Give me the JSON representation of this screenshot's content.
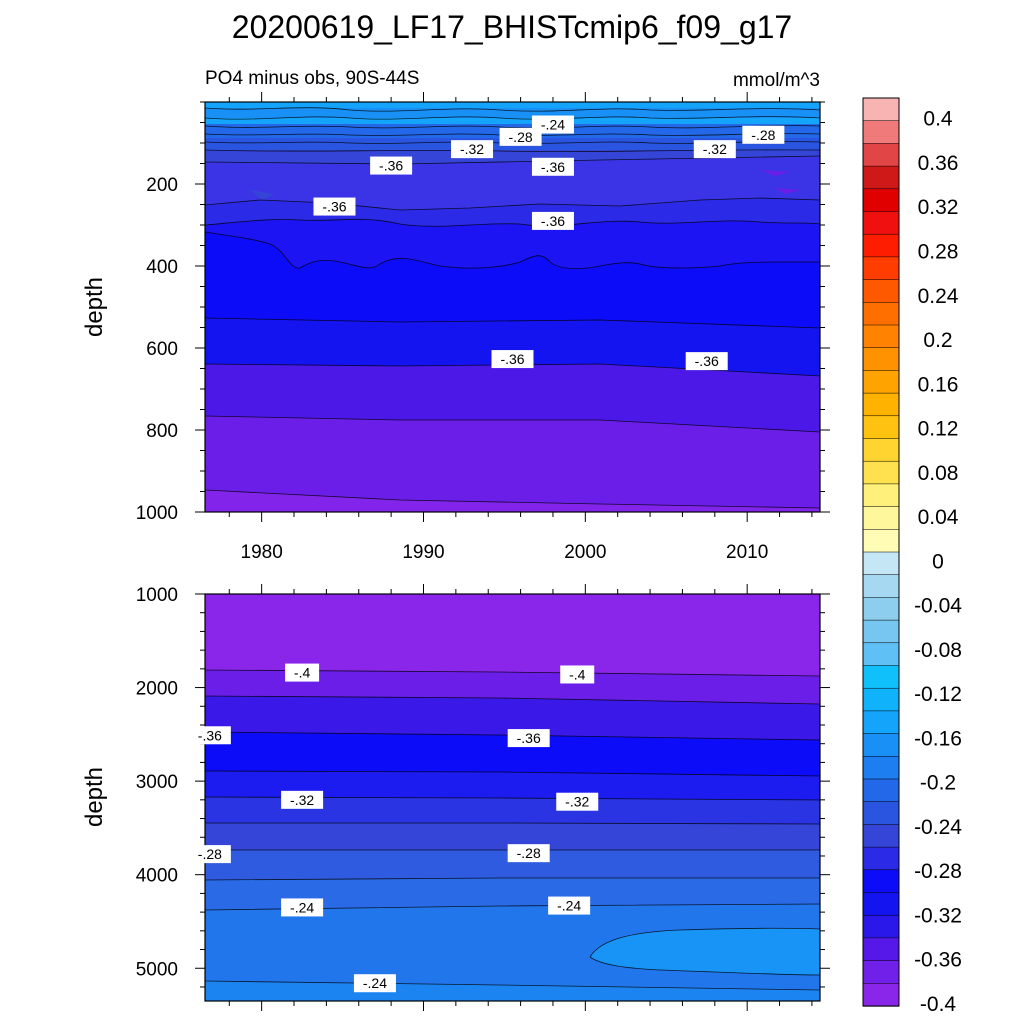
{
  "title": "20200619_LF17_BHISTcmip6_f09_g17",
  "subtitle_left": "PO4 minus obs, 90S-44S",
  "subtitle_right": "mmol/m^3",
  "chart_data": [
    {
      "type": "contour",
      "panel": "upper",
      "ylabel": "depth",
      "xlabel": "",
      "xlim": [
        1976.5,
        2014.5
      ],
      "ylim": [
        1000,
        0
      ],
      "xticks": [
        "1980",
        "1990",
        "2000",
        "2010"
      ],
      "yticks": [
        "200",
        "400",
        "600",
        "800",
        "1000"
      ],
      "contour_labels": [
        {
          "text": "-.24",
          "x": 1998,
          "y": 55
        },
        {
          "text": "-.28",
          "x": 1996,
          "y": 85
        },
        {
          "text": "-.28",
          "x": 2011,
          "y": 80
        },
        {
          "text": "-.32",
          "x": 1993,
          "y": 115
        },
        {
          "text": "-.32",
          "x": 2008,
          "y": 115
        },
        {
          "text": "-.36",
          "x": 1988,
          "y": 155
        },
        {
          "text": "-.36",
          "x": 1998,
          "y": 158
        },
        {
          "text": "-.36",
          "x": 1984.5,
          "y": 255
        },
        {
          "text": "-.36",
          "x": 1998,
          "y": 290
        },
        {
          "text": "-.36",
          "x": 1995.5,
          "y": 627
        },
        {
          "text": "-.36",
          "x": 2007.5,
          "y": 632
        }
      ]
    },
    {
      "type": "contour",
      "panel": "lower",
      "ylabel": "depth",
      "xlabel": "",
      "xlim": [
        1976.5,
        2014.5
      ],
      "ylim": [
        5350,
        1000
      ],
      "xticks": [
        "1980",
        "1990",
        "2000",
        "2010"
      ],
      "yticks": [
        "1000",
        "2000",
        "3000",
        "4000",
        "5000"
      ],
      "contour_labels": [
        {
          "text": "-.4",
          "x": 1982.5,
          "y": 1840
        },
        {
          "text": "-.4",
          "x": 1999.5,
          "y": 1860
        },
        {
          "text": "-.36",
          "x": 1976.8,
          "y": 2510
        },
        {
          "text": "-.36",
          "x": 1996.5,
          "y": 2540
        },
        {
          "text": "-.32",
          "x": 1982.5,
          "y": 3200
        },
        {
          "text": "-.32",
          "x": 1999.5,
          "y": 3220
        },
        {
          "text": "-.28",
          "x": 1976.8,
          "y": 3780
        },
        {
          "text": "-.28",
          "x": 1996.5,
          "y": 3770
        },
        {
          "text": "-.24",
          "x": 1982.5,
          "y": 4350
        },
        {
          "text": "-.24",
          "x": 1999,
          "y": 4330
        },
        {
          "text": "-.24",
          "x": 1987,
          "y": 5160
        }
      ]
    }
  ],
  "colorbar": {
    "levels": [
      "0.4",
      "0.36",
      "0.32",
      "0.28",
      "0.24",
      "0.2",
      "0.16",
      "0.12",
      "0.08",
      "0.04",
      "0",
      "-0.04",
      "-0.08",
      "-0.12",
      "-0.16",
      "-0.2",
      "-0.24",
      "-0.28",
      "-0.32",
      "-0.36",
      "-0.4"
    ],
    "colors": [
      "#f8b3b3",
      "#f07a7a",
      "#e24545",
      "#cf1818",
      "#e00000",
      "#f01010",
      "#ff1d00",
      "#ff3d00",
      "#ff5900",
      "#ff6f00",
      "#ff8200",
      "#ff9200",
      "#ffa300",
      "#ffb200",
      "#ffc210",
      "#ffd330",
      "#ffe04f",
      "#fff07b",
      "#fff79c",
      "#fffcb6",
      "#c4e6f5",
      "#a6d9f1",
      "#8dcdee",
      "#77c6f1",
      "#5fc0f6",
      "#0fc0fb",
      "#10b2fb",
      "#15a4fb",
      "#1890f5",
      "#1c7ef0",
      "#2268e8",
      "#2a55e0",
      "#3545d8",
      "#2b2ae6",
      "#0c0cf8",
      "#1414f0",
      "#2a18ea",
      "#5518e8",
      "#7020e8",
      "#8a26ea"
    ]
  }
}
